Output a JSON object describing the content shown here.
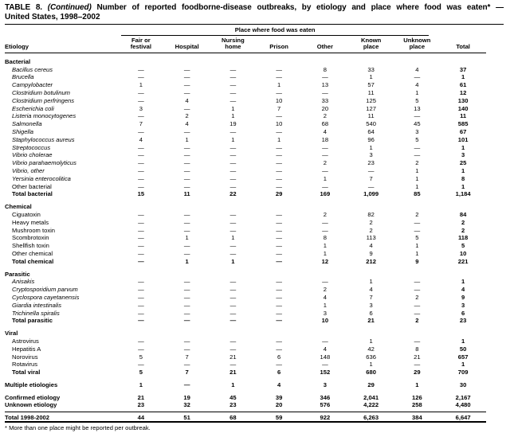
{
  "title": {
    "prefix": "TABLE 8.",
    "continued": "(Continued)",
    "line1_rest": "Number of reported foodborne-disease outbreaks, by etiology and place where food was eaten* —",
    "line2": "United States, 1998–2002"
  },
  "header": {
    "etiology": "Etiology",
    "span": "Place where food was eaten",
    "columns": [
      "Fair or\nfestival",
      "Hospital",
      "Nursing\nhome",
      "Prison",
      "Other",
      "Known\nplace",
      "Unknown\nplace",
      "Total"
    ]
  },
  "sections": [
    {
      "name": "Bacterial",
      "rows": [
        {
          "label": "Bacillus cereus",
          "italic": true,
          "values": [
            "—",
            "—",
            "—",
            "—",
            "8",
            "33",
            "4",
            "37"
          ]
        },
        {
          "label": "Brucella",
          "italic": true,
          "values": [
            "—",
            "—",
            "—",
            "—",
            "—",
            "1",
            "—",
            "1"
          ]
        },
        {
          "label": "Campylobacter",
          "italic": true,
          "values": [
            "1",
            "—",
            "—",
            "1",
            "13",
            "57",
            "4",
            "61"
          ]
        },
        {
          "label": "Clostridium botulinum",
          "italic": true,
          "values": [
            "—",
            "—",
            "—",
            "—",
            "—",
            "11",
            "1",
            "12"
          ]
        },
        {
          "label": "Clostridium perfringens",
          "italic": true,
          "values": [
            "—",
            "4",
            "—",
            "10",
            "33",
            "125",
            "5",
            "130"
          ]
        },
        {
          "label": "Escherichia coli",
          "italic": true,
          "values": [
            "3",
            "—",
            "1",
            "7",
            "20",
            "127",
            "13",
            "140"
          ]
        },
        {
          "label": "Listeria monocytogenes",
          "italic": true,
          "values": [
            "—",
            "2",
            "1",
            "—",
            "2",
            "11",
            "—",
            "11"
          ]
        },
        {
          "label": "Salmonella",
          "italic": true,
          "values": [
            "7",
            "4",
            "19",
            "10",
            "68",
            "540",
            "45",
            "585"
          ]
        },
        {
          "label": "Shigella",
          "italic": true,
          "values": [
            "—",
            "—",
            "—",
            "—",
            "4",
            "64",
            "3",
            "67"
          ]
        },
        {
          "label": "Staphylococcus aureus",
          "italic": true,
          "values": [
            "4",
            "1",
            "1",
            "1",
            "18",
            "96",
            "5",
            "101"
          ]
        },
        {
          "label": "Streptococcus",
          "italic": true,
          "values": [
            "—",
            "—",
            "—",
            "—",
            "—",
            "1",
            "—",
            "1"
          ]
        },
        {
          "label": "Vibrio cholerae",
          "italic": true,
          "values": [
            "—",
            "—",
            "—",
            "—",
            "—",
            "3",
            "—",
            "3"
          ]
        },
        {
          "label": "Vibrio parahaemolyticus",
          "italic": true,
          "values": [
            "—",
            "—",
            "—",
            "—",
            "2",
            "23",
            "2",
            "25"
          ]
        },
        {
          "label": "Vibrio, other",
          "italic": true,
          "values": [
            "—",
            "—",
            "—",
            "—",
            "—",
            "—",
            "1",
            "1"
          ]
        },
        {
          "label": "Yersinia enterocolitica",
          "italic": true,
          "values": [
            "—",
            "—",
            "—",
            "—",
            "1",
            "7",
            "1",
            "8"
          ]
        },
        {
          "label": "Other bacterial",
          "values": [
            "—",
            "—",
            "—",
            "—",
            "—",
            "—",
            "1",
            "1"
          ]
        },
        {
          "label": "Total bacterial",
          "bold": true,
          "values": [
            "15",
            "11",
            "22",
            "29",
            "169",
            "1,099",
            "85",
            "1,184"
          ]
        }
      ]
    },
    {
      "name": "Chemical",
      "rows": [
        {
          "label": "Ciguatoxin",
          "values": [
            "—",
            "—",
            "—",
            "—",
            "2",
            "82",
            "2",
            "84"
          ]
        },
        {
          "label": "Heavy metals",
          "values": [
            "—",
            "—",
            "—",
            "—",
            "—",
            "2",
            "—",
            "2"
          ]
        },
        {
          "label": "Mushroom toxin",
          "values": [
            "—",
            "—",
            "—",
            "—",
            "—",
            "2",
            "—",
            "2"
          ]
        },
        {
          "label": "Scombrotoxin",
          "values": [
            "—",
            "1",
            "1",
            "—",
            "8",
            "113",
            "5",
            "118"
          ]
        },
        {
          "label": "Shellfish toxin",
          "values": [
            "—",
            "—",
            "—",
            "—",
            "1",
            "4",
            "1",
            "5"
          ]
        },
        {
          "label": "Other chemical",
          "values": [
            "—",
            "—",
            "—",
            "—",
            "1",
            "9",
            "1",
            "10"
          ]
        },
        {
          "label": "Total chemical",
          "bold": true,
          "values": [
            "—",
            "1",
            "1",
            "—",
            "12",
            "212",
            "9",
            "221"
          ]
        }
      ]
    },
    {
      "name": "Parasitic",
      "rows": [
        {
          "label": "Anisakis",
          "italic": true,
          "values": [
            "—",
            "—",
            "—",
            "—",
            "—",
            "1",
            "—",
            "1"
          ]
        },
        {
          "label": "Cryptosporidium parvum",
          "italic": true,
          "values": [
            "—",
            "—",
            "—",
            "—",
            "2",
            "4",
            "—",
            "4"
          ]
        },
        {
          "label": "Cyclospora cayetanensis",
          "italic": true,
          "values": [
            "—",
            "—",
            "—",
            "—",
            "4",
            "7",
            "2",
            "9"
          ]
        },
        {
          "label": "Giardia intestinalis",
          "italic": true,
          "values": [
            "—",
            "—",
            "—",
            "—",
            "1",
            "3",
            "—",
            "3"
          ]
        },
        {
          "label": "Trichinella spiralis",
          "italic": true,
          "values": [
            "—",
            "—",
            "—",
            "—",
            "3",
            "6",
            "—",
            "6"
          ]
        },
        {
          "label": "Total parasitic",
          "bold": true,
          "values": [
            "—",
            "—",
            "—",
            "—",
            "10",
            "21",
            "2",
            "23"
          ]
        }
      ]
    },
    {
      "name": "Viral",
      "rows": [
        {
          "label": "Astrovirus",
          "values": [
            "—",
            "—",
            "—",
            "—",
            "—",
            "1",
            "—",
            "1"
          ]
        },
        {
          "label": "Hepatitis A",
          "values": [
            "—",
            "—",
            "—",
            "—",
            "4",
            "42",
            "8",
            "50"
          ]
        },
        {
          "label": "Norovirus",
          "values": [
            "5",
            "7",
            "21",
            "6",
            "148",
            "636",
            "21",
            "657"
          ]
        },
        {
          "label": "Rotavirus",
          "values": [
            "—",
            "—",
            "—",
            "—",
            "—",
            "1",
            "—",
            "1"
          ]
        },
        {
          "label": "Total viral",
          "bold": true,
          "values": [
            "5",
            "7",
            "21",
            "6",
            "152",
            "680",
            "29",
            "709"
          ]
        }
      ]
    }
  ],
  "summary": [
    {
      "label": "Multiple etiologies",
      "bold": true,
      "gap": true,
      "values": [
        "1",
        "—",
        "1",
        "4",
        "3",
        "29",
        "1",
        "30"
      ]
    },
    {
      "label": "Confirmed etiology",
      "bold": true,
      "gap": true,
      "values": [
        "21",
        "19",
        "45",
        "39",
        "346",
        "2,041",
        "126",
        "2,167"
      ]
    },
    {
      "label": "Unknown etiology",
      "bold": true,
      "values": [
        "23",
        "32",
        "23",
        "20",
        "576",
        "4,222",
        "258",
        "4,480"
      ]
    },
    {
      "label": "Total 1998-2002",
      "bold": true,
      "grand": true,
      "values": [
        "44",
        "51",
        "68",
        "59",
        "922",
        "6,263",
        "384",
        "6,647"
      ]
    }
  ],
  "footnote": "* More than one place might be reported per outbreak."
}
